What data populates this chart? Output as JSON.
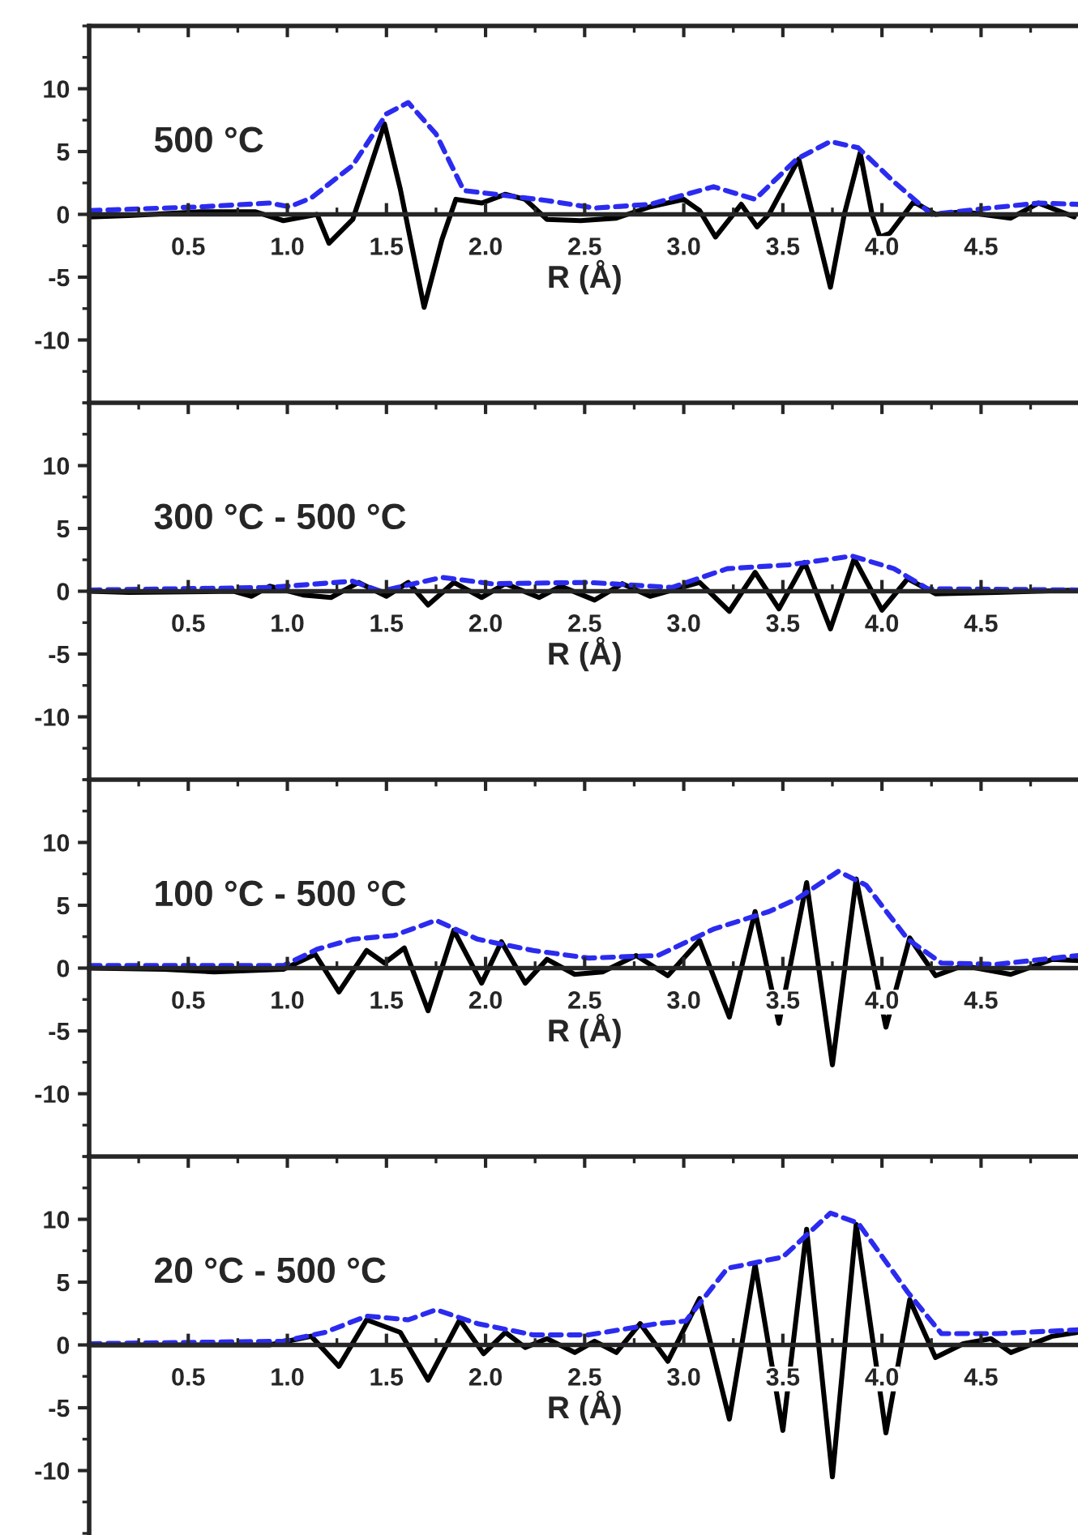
{
  "chart_data": [
    {
      "type": "line",
      "title": "500 °C",
      "xlabel": "R (Å)",
      "xlim": [
        0,
        5
      ],
      "ylim": [
        -15,
        15
      ],
      "xticks": [
        0.5,
        {
          "value": 1,
          "label": "1.0"
        },
        1.5,
        {
          "value": 2,
          "label": "2.0"
        },
        2.5,
        {
          "value": 3,
          "label": "3.0"
        },
        3.5,
        {
          "value": 4,
          "label": "4.0"
        },
        4.5
      ],
      "yticks": [
        -10,
        -5,
        0,
        5,
        10
      ],
      "series": [
        {
          "color": "#000000",
          "line_style": "solid",
          "x": [
            0,
            0.2,
            0.56,
            0.84,
            0.98,
            1.15,
            1.21,
            1.33,
            1.49,
            1.57,
            1.69,
            1.78,
            1.85,
            1.98,
            2.1,
            2.2,
            2.31,
            2.48,
            2.66,
            2.83,
            3.0,
            3.08,
            3.16,
            3.29,
            3.37,
            3.43,
            3.58,
            3.65,
            3.74,
            3.81,
            3.89,
            3.95,
            3.99,
            4.04,
            4.16,
            4.27,
            4.41,
            4.65,
            4.79,
            4.97
          ],
          "values": [
            -0.2,
            -0.1,
            0.2,
            0.2,
            -0.5,
            0,
            -2.3,
            -0.4,
            7.2,
            2,
            -7.4,
            -2,
            1.2,
            0.9,
            1.6,
            1.2,
            -0.4,
            -0.5,
            -0.3,
            0.6,
            1.2,
            0.3,
            -1.8,
            0.8,
            -1.0,
            0,
            4.4,
            0,
            -5.8,
            0,
            4.9,
            0,
            -1.8,
            -1.5,
            1.0,
            0,
            0.2,
            -0.3,
            0.9,
            -0.2
          ]
        },
        {
          "color": "#2b2bf0",
          "line_style": "dashed",
          "x": [
            0,
            0.56,
            0.91,
            1.01,
            1.12,
            1.33,
            1.5,
            1.61,
            1.75,
            1.89,
            2.1,
            2.31,
            2.55,
            2.83,
            3.15,
            3.36,
            3.57,
            3.74,
            3.88,
            4.06,
            4.25,
            4.48,
            4.79,
            4.99
          ],
          "values": [
            0.3,
            0.6,
            0.9,
            0.6,
            1.3,
            3.9,
            8.0,
            8.9,
            6.4,
            1.9,
            1.5,
            1.1,
            0.5,
            0.8,
            2.2,
            1.2,
            4.4,
            5.8,
            5.3,
            2.6,
            0,
            0.4,
            0.9,
            0.8
          ]
        }
      ]
    },
    {
      "type": "line",
      "title": "300 °C - 500 °C",
      "xlabel": "R (Å)",
      "xlim": [
        0,
        5
      ],
      "ylim": [
        -15,
        15
      ],
      "xticks": [
        0.5,
        {
          "value": 1,
          "label": "1.0"
        },
        1.5,
        {
          "value": 2,
          "label": "2.0"
        },
        2.5,
        {
          "value": 3,
          "label": "3.0"
        },
        3.5,
        {
          "value": 4,
          "label": "4.0"
        },
        4.5
      ],
      "yticks": [
        -10,
        -5,
        0,
        5,
        10
      ],
      "series": [
        {
          "color": "#000000",
          "line_style": "solid",
          "x": [
            0,
            0.2,
            0.73,
            0.82,
            0.91,
            1.08,
            1.22,
            1.36,
            1.5,
            1.61,
            1.71,
            1.84,
            1.98,
            2.1,
            2.27,
            2.38,
            2.55,
            2.69,
            2.83,
            3.08,
            3.23,
            3.36,
            3.48,
            3.61,
            3.74,
            3.86,
            4.0,
            4.13,
            4.27,
            4.58,
            4.99
          ],
          "values": [
            0,
            -0.1,
            0,
            -0.4,
            0.4,
            -0.3,
            -0.5,
            0.7,
            -0.4,
            0.7,
            -1.1,
            0.7,
            -0.5,
            0.6,
            -0.5,
            0.4,
            -0.7,
            0.6,
            -0.4,
            0.7,
            -1.6,
            1.5,
            -1.4,
            2.3,
            -3.0,
            2.6,
            -1.5,
            1.0,
            -0.2,
            -0.1,
            0.1
          ]
        },
        {
          "color": "#2b2bf0",
          "line_style": "dashed",
          "x": [
            0,
            0.91,
            1.33,
            1.47,
            1.78,
            2.03,
            2.52,
            2.94,
            3.22,
            3.53,
            3.85,
            4.06,
            4.23,
            4.99
          ],
          "values": [
            0.1,
            0.3,
            0.8,
            0,
            1.1,
            0.6,
            0.7,
            0.3,
            1.8,
            2.1,
            2.8,
            1.8,
            0.2,
            0.1
          ]
        }
      ]
    },
    {
      "type": "line",
      "title": "100 °C - 500 °C",
      "xlabel": "R (Å)",
      "xlim": [
        0,
        5
      ],
      "ylim": [
        -15,
        15
      ],
      "xticks": [
        0.5,
        {
          "value": 1,
          "label": "1.0"
        },
        1.5,
        {
          "value": 2,
          "label": "2.0"
        },
        2.5,
        {
          "value": 3,
          "label": "3.0"
        },
        3.5,
        {
          "value": 4,
          "label": "4.0"
        },
        4.5
      ],
      "yticks": [
        -10,
        -5,
        0,
        5,
        10
      ],
      "series": [
        {
          "color": "#000000",
          "line_style": "solid",
          "x": [
            0,
            0.38,
            0.63,
            0.98,
            1.14,
            1.26,
            1.4,
            1.49,
            1.59,
            1.71,
            1.84,
            1.98,
            2.08,
            2.2,
            2.31,
            2.45,
            2.59,
            2.76,
            2.92,
            3.08,
            3.23,
            3.36,
            3.48,
            3.62,
            3.75,
            3.87,
            4.02,
            4.14,
            4.27,
            4.41,
            4.65,
            4.86,
            4.99
          ],
          "values": [
            0,
            -0.1,
            -0.3,
            -0.1,
            1.1,
            -1.9,
            1.4,
            0.4,
            1.6,
            -3.4,
            3.0,
            -1.2,
            2.1,
            -1.2,
            0.7,
            -0.5,
            -0.3,
            1.0,
            -0.6,
            2.2,
            -3.9,
            4.5,
            -4.4,
            6.8,
            -7.7,
            7.1,
            -4.7,
            2.4,
            -0.6,
            0.2,
            -0.5,
            0.7,
            0.6
          ]
        },
        {
          "color": "#2b2bf0",
          "line_style": "dashed",
          "x": [
            0,
            0.98,
            1.15,
            1.33,
            1.54,
            1.75,
            1.96,
            2.24,
            2.52,
            2.87,
            3.15,
            3.43,
            3.57,
            3.78,
            3.92,
            4.13,
            4.3,
            4.58,
            4.99
          ],
          "values": [
            0.2,
            0.2,
            1.5,
            2.3,
            2.6,
            3.8,
            2.3,
            1.4,
            0.8,
            1.0,
            3.1,
            4.5,
            5.5,
            7.7,
            6.6,
            2.3,
            0.4,
            0.3,
            1.0
          ]
        }
      ]
    },
    {
      "type": "line",
      "title": "20 °C - 500 °C",
      "xlabel": "R (Å)",
      "xlim": [
        0,
        5
      ],
      "ylim": [
        -15,
        15
      ],
      "xticks": [
        0.5,
        {
          "value": 1,
          "label": "1.0"
        },
        1.5,
        {
          "value": 2,
          "label": "2.0"
        },
        2.5,
        {
          "value": 3,
          "label": "3.0"
        },
        3.5,
        {
          "value": 4,
          "label": "4.0"
        },
        4.5
      ],
      "yticks": [
        -10,
        -5,
        0,
        5,
        10
      ],
      "series": [
        {
          "color": "#000000",
          "line_style": "solid",
          "x": [
            0,
            0.91,
            1.12,
            1.26,
            1.4,
            1.57,
            1.71,
            1.87,
            1.99,
            2.1,
            2.2,
            2.31,
            2.45,
            2.55,
            2.66,
            2.78,
            2.92,
            3.08,
            3.23,
            3.36,
            3.5,
            3.62,
            3.75,
            3.87,
            4.02,
            4.14,
            4.27,
            4.41,
            4.55,
            4.65,
            4.86,
            4.99
          ],
          "values": [
            0,
            0,
            0.7,
            -1.7,
            2.0,
            1.0,
            -2.8,
            2.0,
            -0.7,
            1.0,
            -0.2,
            0.5,
            -0.6,
            0.3,
            -0.6,
            1.7,
            -1.3,
            3.7,
            -5.9,
            6.4,
            -6.8,
            9.2,
            -10.5,
            9.6,
            -7.0,
            3.6,
            -1.0,
            0.1,
            0.5,
            -0.6,
            0.7,
            1.0
          ]
        },
        {
          "color": "#2b2bf0",
          "line_style": "dashed",
          "x": [
            0,
            0.98,
            1.19,
            1.4,
            1.61,
            1.75,
            1.96,
            2.24,
            2.52,
            2.87,
            3.01,
            3.22,
            3.5,
            3.74,
            3.88,
            4.13,
            4.3,
            4.58,
            4.99
          ],
          "values": [
            0.1,
            0.3,
            1.0,
            2.3,
            2.0,
            2.8,
            1.7,
            0.8,
            0.8,
            1.7,
            1.9,
            6.1,
            7.0,
            10.5,
            9.7,
            4.2,
            0.9,
            0.9,
            1.2
          ]
        }
      ]
    }
  ]
}
